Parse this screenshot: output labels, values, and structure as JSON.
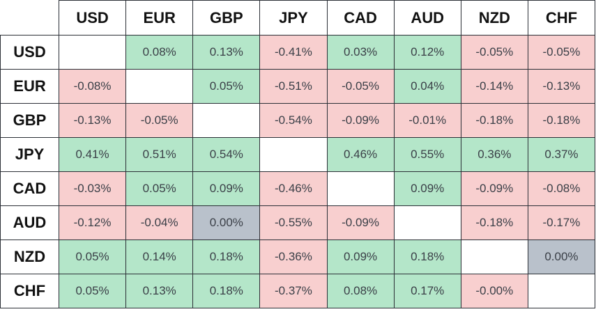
{
  "table": {
    "columns": [
      "USD",
      "EUR",
      "GBP",
      "JPY",
      "CAD",
      "AUD",
      "NZD",
      "CHF"
    ],
    "rows": [
      {
        "label": "USD",
        "cells": [
          null,
          "0.08%",
          "0.13%",
          "-0.41%",
          "0.03%",
          "0.12%",
          "-0.05%",
          "-0.05%"
        ]
      },
      {
        "label": "EUR",
        "cells": [
          "-0.08%",
          null,
          "0.05%",
          "-0.51%",
          "-0.05%",
          "0.04%",
          "-0.14%",
          "-0.13%"
        ]
      },
      {
        "label": "GBP",
        "cells": [
          "-0.13%",
          "-0.05%",
          null,
          "-0.54%",
          "-0.09%",
          "-0.01%",
          "-0.18%",
          "-0.18%"
        ]
      },
      {
        "label": "JPY",
        "cells": [
          "0.41%",
          "0.51%",
          "0.54%",
          null,
          "0.46%",
          "0.55%",
          "0.36%",
          "0.37%"
        ]
      },
      {
        "label": "CAD",
        "cells": [
          "-0.03%",
          "0.05%",
          "0.09%",
          "-0.46%",
          null,
          "0.09%",
          "-0.09%",
          "-0.08%"
        ]
      },
      {
        "label": "AUD",
        "cells": [
          "-0.12%",
          "-0.04%",
          "0.00%",
          "-0.55%",
          "-0.09%",
          null,
          "-0.18%",
          "-0.17%"
        ]
      },
      {
        "label": "NZD",
        "cells": [
          "0.05%",
          "0.14%",
          "0.18%",
          "-0.36%",
          "0.09%",
          "0.18%",
          null,
          "0.00%"
        ]
      },
      {
        "label": "CHF",
        "cells": [
          "0.05%",
          "0.13%",
          "0.18%",
          "-0.37%",
          "0.08%",
          "0.17%",
          "-0.00%",
          null
        ]
      }
    ]
  }
}
